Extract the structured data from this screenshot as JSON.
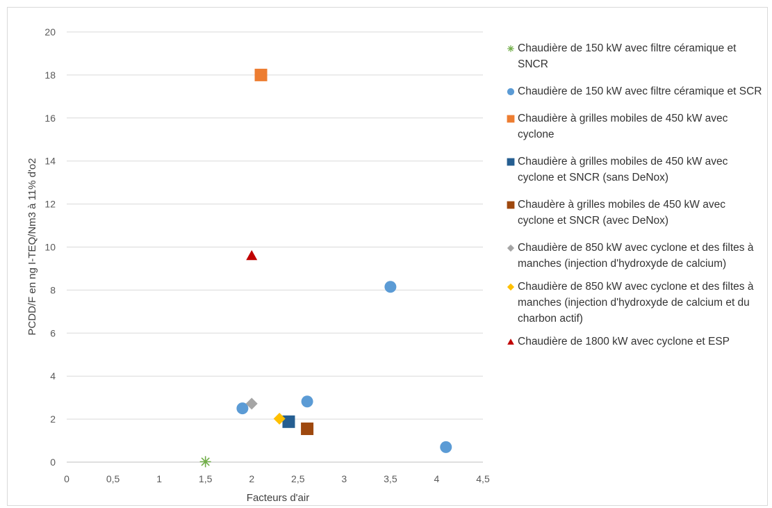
{
  "chart_data": {
    "type": "scatter",
    "title": "",
    "xlabel": "Facteurs d'air",
    "ylabel": "PCDD/F en ng I-TEQ/Nm3 à 11% d'o2",
    "xlim": [
      0,
      4.5
    ],
    "ylim": [
      0,
      20
    ],
    "x_ticks": [
      0,
      0.5,
      1,
      1.5,
      2,
      2.5,
      3,
      3.5,
      4,
      4.5
    ],
    "x_tick_labels": [
      "0",
      "0,5",
      "1",
      "1,5",
      "2",
      "2,5",
      "3",
      "3,5",
      "4",
      "4,5"
    ],
    "y_ticks": [
      0,
      2,
      4,
      6,
      8,
      10,
      12,
      14,
      16,
      18,
      20
    ],
    "y_tick_labels": [
      "0",
      "2",
      "4",
      "6",
      "8",
      "10",
      "12",
      "14",
      "16",
      "18",
      "20"
    ],
    "grid": "horizontal",
    "legend_position": "right",
    "series": [
      {
        "name": "Chaudière de 150 kW avec filtre céramique et SNCR",
        "marker": "star",
        "color": "#70ad47",
        "points": [
          [
            1.5,
            0.02
          ]
        ]
      },
      {
        "name": "Chaudière de 150 kW avec filtre céramique et SCR",
        "marker": "circle",
        "color": "#5b9bd5",
        "points": [
          [
            1.9,
            2.5
          ],
          [
            2.6,
            2.82
          ],
          [
            3.5,
            8.15
          ],
          [
            4.1,
            0.7
          ]
        ]
      },
      {
        "name": "Chaudière à grilles mobiles de 450 kW avec cyclone",
        "marker": "square",
        "color": "#ed7d31",
        "points": [
          [
            2.1,
            18.0
          ]
        ]
      },
      {
        "name": "Chaudière à grilles mobiles de 450 kW avec cyclone et SNCR (sans DeNox)",
        "marker": "square",
        "color": "#255e91",
        "points": [
          [
            2.4,
            1.88
          ]
        ]
      },
      {
        "name": "Chaudère à grilles mobiles de 450 kW avec cyclone et SNCR (avec DeNox)",
        "marker": "square",
        "color": "#9e480e",
        "points": [
          [
            2.6,
            1.55
          ]
        ]
      },
      {
        "name": "Chaudière de 850 kW avec cyclone et des filtes à manches (injection d'hydroxyde de calcium)",
        "marker": "diamond",
        "color": "#a5a5a5",
        "points": [
          [
            2.0,
            2.72
          ]
        ]
      },
      {
        "name": "Chaudière de 850 kW avec cyclone et des filtes à manches (injection d'hydroxyde de calcium et du charbon actif)",
        "marker": "diamond",
        "color": "#ffc000",
        "points": [
          [
            2.3,
            2.02
          ]
        ]
      },
      {
        "name": "Chaudière de 1800 kW avec cyclone et ESP",
        "marker": "triangle",
        "color": "#c00000",
        "points": [
          [
            2.0,
            9.6
          ]
        ]
      }
    ]
  }
}
